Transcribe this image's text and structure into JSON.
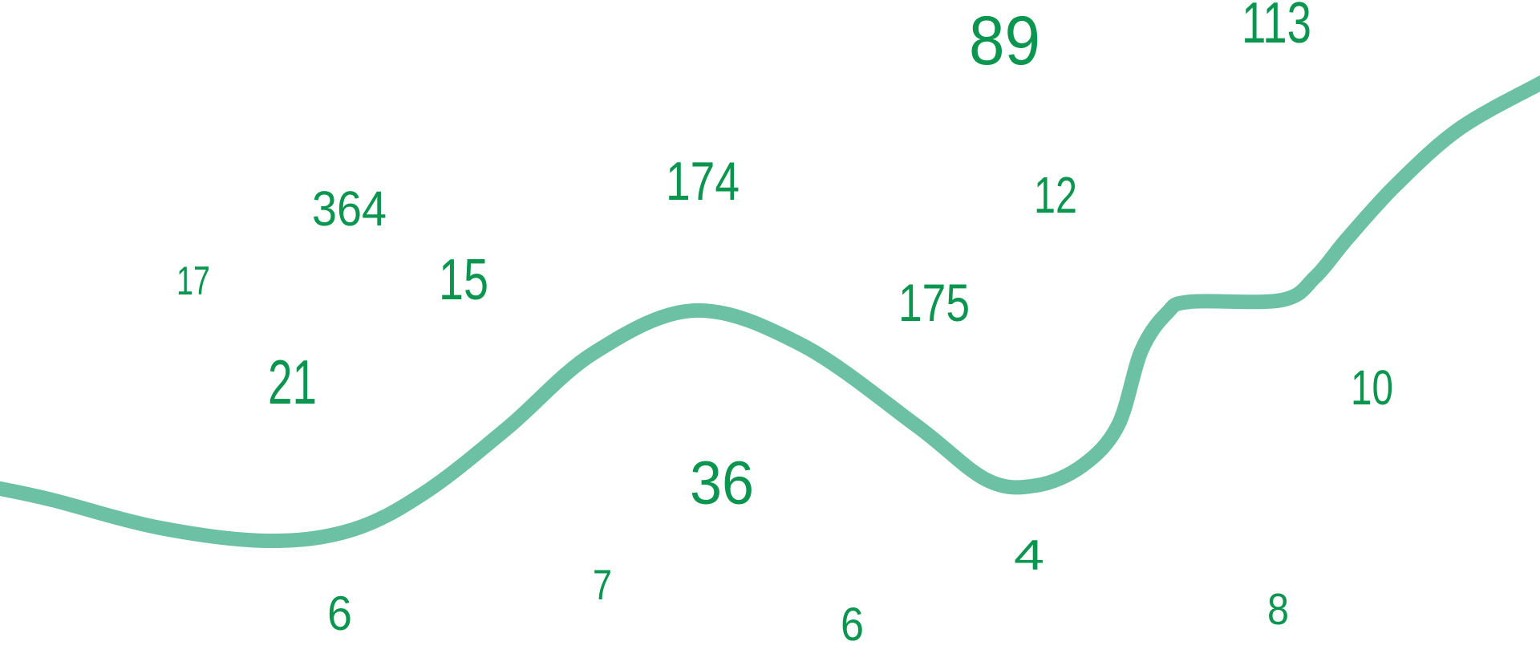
{
  "colors": {
    "number": "#0b9650",
    "curve": "#6cc1a4",
    "background": "#ffffff"
  },
  "numbers": [
    "89",
    "113",
    "174",
    "12",
    "364",
    "17",
    "15",
    "175",
    "21",
    "10",
    "36",
    "4",
    "7",
    "6",
    "6",
    "8"
  ]
}
